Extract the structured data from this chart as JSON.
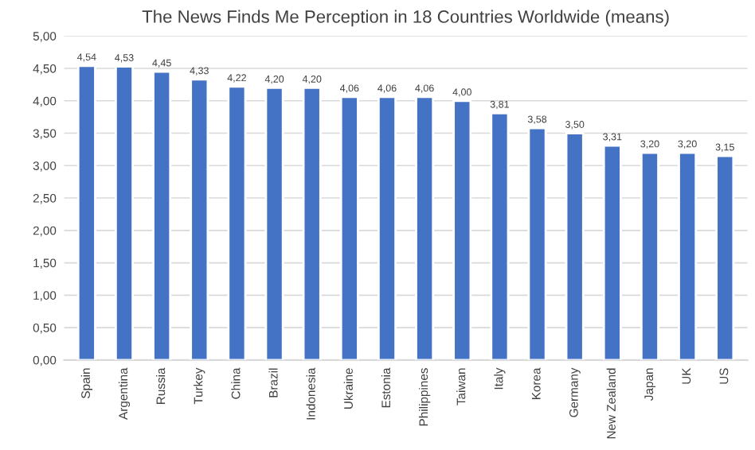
{
  "chart_data": {
    "type": "bar",
    "title": "The News Finds Me Perception in 18 Countries Worldwide (means)",
    "categories": [
      "Spain",
      "Argentina",
      "Russia",
      "Turkey",
      "China",
      "Brazil",
      "Indonesia",
      "Ukraine",
      "Estonia",
      "Philippines",
      "Taiwan",
      "Italy",
      "Korea",
      "Germany",
      "New Zealand",
      "Japan",
      "UK",
      "US"
    ],
    "values": [
      4.54,
      4.53,
      4.45,
      4.33,
      4.22,
      4.2,
      4.2,
      4.06,
      4.06,
      4.06,
      4.0,
      3.81,
      3.58,
      3.5,
      3.31,
      3.2,
      3.2,
      3.15
    ],
    "value_labels": [
      "4,54",
      "4,53",
      "4,45",
      "4,33",
      "4,22",
      "4,20",
      "4,20",
      "4,06",
      "4,06",
      "4,06",
      "4,00",
      "3,81",
      "3,58",
      "3,50",
      "3,31",
      "3,20",
      "3,20",
      "3,15"
    ],
    "color": "#4472c4",
    "ylim": [
      0,
      5
    ],
    "yticks": [
      {
        "value": 0,
        "label": "0,00"
      },
      {
        "value": 0.5,
        "label": "0,50"
      },
      {
        "value": 1,
        "label": "1,00"
      },
      {
        "value": 1.5,
        "label": "1,50"
      },
      {
        "value": 2,
        "label": "2,00"
      },
      {
        "value": 2.5,
        "label": "2,50"
      },
      {
        "value": 3,
        "label": "3,00"
      },
      {
        "value": 3.5,
        "label": "3,50"
      },
      {
        "value": 4,
        "label": "4,00"
      },
      {
        "value": 4.5,
        "label": "4,50"
      },
      {
        "value": 5,
        "label": "5,00"
      }
    ],
    "grid": "y"
  }
}
